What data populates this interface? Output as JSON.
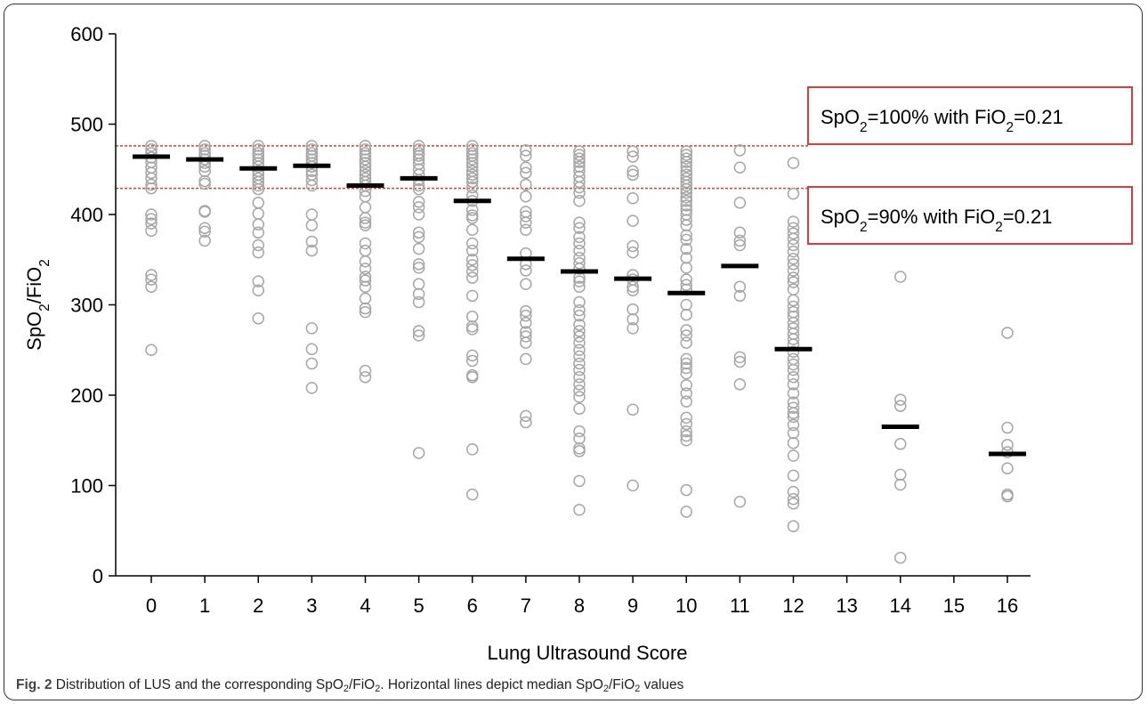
{
  "chart_data": {
    "type": "scatter",
    "xlabel": "Lung Ultrasound Score",
    "ylabel": {
      "base": "SpO",
      "sub1": "2",
      "mid": "/FiO",
      "sub2": "2"
    },
    "ylim": [
      0,
      600
    ],
    "yticks": [
      "0",
      "100",
      "200",
      "300",
      "400",
      "500",
      "600"
    ],
    "categories": [
      "0",
      "1",
      "2",
      "3",
      "4",
      "5",
      "6",
      "7",
      "8",
      "9",
      "10",
      "11",
      "12",
      "13",
      "14",
      "15",
      "16"
    ],
    "marker_color": "#a6a6a6",
    "median_color": "#000000",
    "reference_color": "#e03b3b",
    "medians": [
      464,
      461,
      451,
      454,
      432,
      440,
      415,
      351,
      337,
      329,
      313,
      343,
      251,
      null,
      165,
      null,
      135
    ],
    "points": [
      [
        476,
        472,
        468,
        463,
        458,
        452,
        446,
        440,
        433,
        429,
        400,
        395,
        390,
        382,
        333,
        328,
        320,
        250
      ],
      [
        476,
        472,
        468,
        465,
        461,
        457,
        453,
        448,
        437,
        434,
        404,
        403,
        385,
        381,
        371
      ],
      [
        476,
        472,
        468,
        465,
        461,
        457,
        453,
        448,
        444,
        440,
        436,
        432,
        428,
        413,
        401,
        389,
        380,
        366,
        358,
        326,
        316,
        285
      ],
      [
        476,
        472,
        468,
        465,
        461,
        457,
        453,
        448,
        444,
        438,
        432,
        400,
        388,
        370,
        360,
        274,
        251,
        235,
        208
      ],
      [
        476,
        472,
        468,
        465,
        461,
        457,
        453,
        448,
        444,
        440,
        436,
        432,
        426,
        420,
        408,
        396,
        391,
        388,
        368,
        360,
        348,
        340,
        331,
        327,
        320,
        307,
        296,
        292,
        227,
        220
      ],
      [
        476,
        472,
        468,
        465,
        461,
        456,
        450,
        444,
        438,
        432,
        428,
        414,
        408,
        400,
        380,
        375,
        362,
        345,
        341,
        323,
        312,
        303,
        271,
        266,
        136
      ],
      [
        476,
        472,
        468,
        465,
        461,
        457,
        453,
        448,
        444,
        440,
        436,
        430,
        421,
        415,
        405,
        399,
        396,
        383,
        368,
        360,
        350,
        344,
        337,
        330,
        310,
        287,
        276,
        273,
        244,
        238,
        222,
        220,
        140,
        90
      ],
      [
        471,
        465,
        452,
        446,
        433,
        420,
        403,
        398,
        391,
        383,
        357,
        345,
        338,
        323,
        293,
        288,
        280,
        270,
        265,
        258,
        240,
        177,
        170
      ],
      [
        470,
        466,
        462,
        458,
        453,
        448,
        442,
        436,
        430,
        424,
        415,
        391,
        385,
        375,
        368,
        360,
        352,
        346,
        340,
        330,
        326,
        320,
        303,
        294,
        288,
        278,
        271,
        265,
        258,
        250,
        243,
        235,
        228,
        220,
        212,
        205,
        198,
        185,
        160,
        152,
        141,
        138,
        105,
        73
      ],
      [
        470,
        464,
        448,
        444,
        418,
        393,
        365,
        358,
        333,
        328,
        320,
        316,
        295,
        284,
        274,
        184,
        100
      ],
      [
        470,
        466,
        462,
        458,
        453,
        448,
        444,
        440,
        436,
        432,
        428,
        424,
        419,
        415,
        410,
        405,
        400,
        394,
        388,
        377,
        372,
        362,
        352,
        341,
        328,
        322,
        317,
        300,
        289,
        272,
        266,
        258,
        240,
        235,
        230,
        224,
        211,
        202,
        193,
        175,
        168,
        160,
        155,
        150,
        95,
        71
      ],
      [
        471,
        452,
        413,
        380,
        371,
        366,
        320,
        310,
        242,
        237,
        212,
        82
      ],
      [
        457,
        423,
        392,
        385,
        379,
        373,
        366,
        359,
        351,
        345,
        338,
        330,
        325,
        317,
        305,
        298,
        292,
        287,
        280,
        274,
        268,
        262,
        256,
        248,
        240,
        234,
        228,
        220,
        212,
        202,
        192,
        186,
        180,
        176,
        167,
        158,
        147,
        133,
        111,
        93,
        85,
        80,
        55
      ],
      [],
      [
        331,
        195,
        188,
        146,
        112,
        101,
        20
      ],
      [],
      [
        269,
        164,
        145,
        137,
        119,
        90,
        88
      ]
    ],
    "reference_lines": [
      {
        "value": 476,
        "text_pre": "SpO",
        "sub1": "2",
        "text_mid": "=100% with FiO",
        "sub2": "2",
        "text_post": "=0.21"
      },
      {
        "value": 429,
        "text_pre": "SpO",
        "sub1": "2",
        "text_mid": "=90% with FiO",
        "sub2": "2",
        "text_post": "=0.21"
      }
    ]
  },
  "caption": {
    "label": "Fig. 2",
    "t1": " Distribution of LUS and the corresponding SpO",
    "s1": "2",
    "t2": "/FiO",
    "s2": "2",
    "t3": ". Horizontal lines depict median SpO",
    "s3": "2",
    "t4": "/FiO",
    "s4": "2",
    "t5": " values"
  }
}
